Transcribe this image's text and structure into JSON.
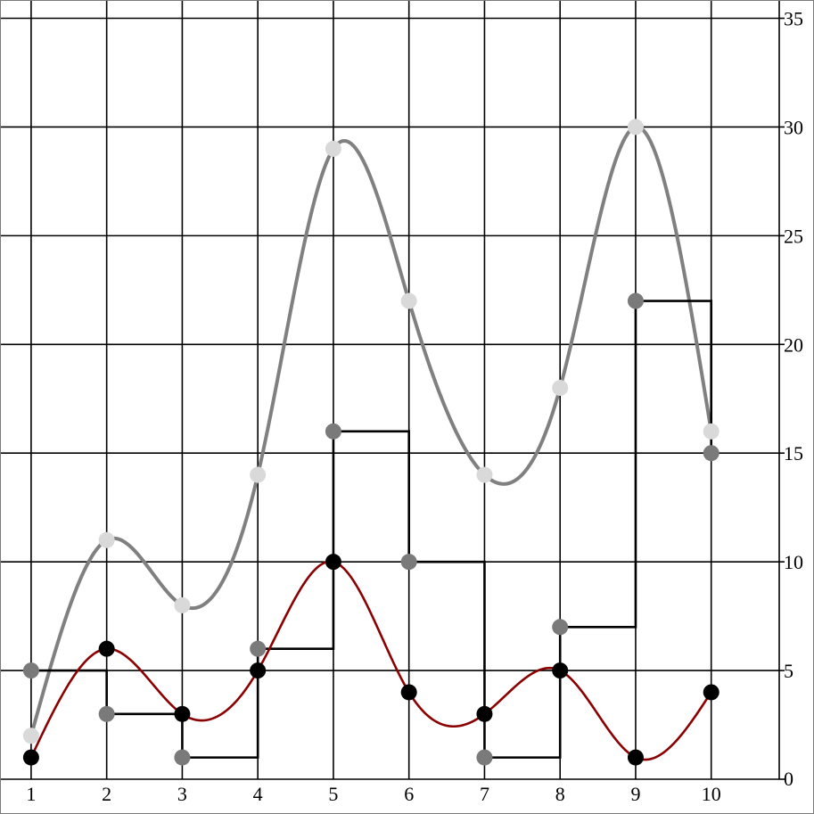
{
  "chart_data": {
    "type": "line",
    "title": "",
    "xlabel": "",
    "ylabel": "",
    "x": [
      1,
      2,
      3,
      4,
      5,
      6,
      7,
      8,
      9,
      10
    ],
    "xlim": [
      0.6,
      10.9
    ],
    "ylim": [
      0,
      35.8
    ],
    "x_ticks": [
      1,
      2,
      3,
      4,
      5,
      6,
      7,
      8,
      9,
      10
    ],
    "y_ticks": [
      0,
      5,
      10,
      15,
      20,
      25,
      30,
      35
    ],
    "y_axis_side": "right",
    "grid": true,
    "legend": "none",
    "series": [
      {
        "style": "scatter-with-smooth-curve",
        "marker_color": "#d9d9d9",
        "line_color": "#808080",
        "values": [
          2,
          11,
          8,
          14,
          29,
          22,
          14,
          18,
          30,
          16
        ]
      },
      {
        "style": "step-with-markers",
        "marker_color": "#7a7a7a",
        "line_color": "#000000",
        "values": [
          5,
          3,
          1,
          6,
          16,
          10,
          1,
          7,
          22,
          15
        ]
      },
      {
        "style": "smooth-line-with-markers",
        "marker_color": "#000000",
        "line_color": "#8b0000",
        "values": [
          1,
          6,
          3,
          5,
          10,
          4,
          3,
          5,
          1,
          4
        ]
      }
    ]
  }
}
